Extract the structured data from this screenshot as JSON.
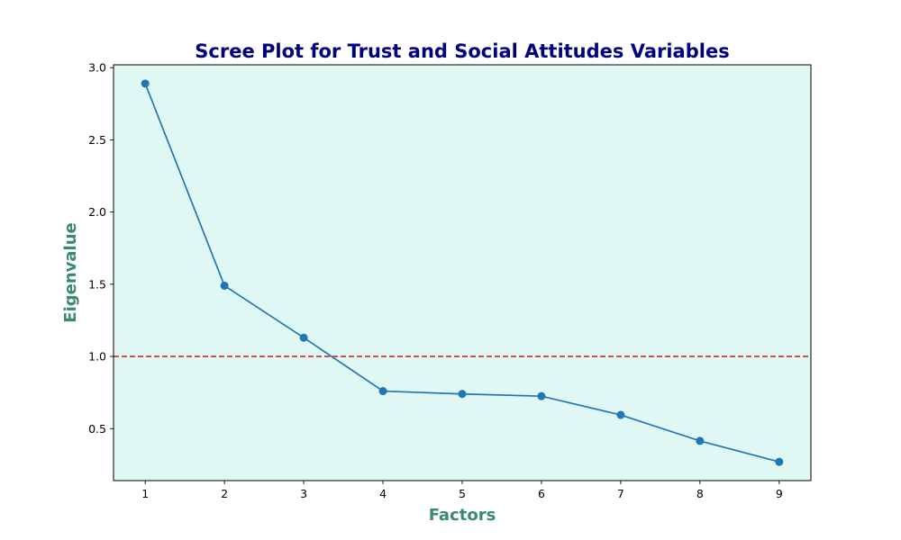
{
  "chart_data": {
    "type": "line",
    "title": "Scree Plot for Trust and Social Attitudes Variables",
    "xlabel": "Factors",
    "ylabel": "Eigenvalue",
    "x": [
      1,
      2,
      3,
      4,
      5,
      6,
      7,
      8,
      9
    ],
    "series": [
      {
        "values": [
          2.89,
          1.49,
          1.13,
          0.76,
          0.74,
          0.725,
          0.595,
          0.415,
          0.27
        ],
        "color": "#1f77b4",
        "marker": "circle"
      }
    ],
    "reference_line": {
      "y": 1.0,
      "color": "#d62728",
      "style": "dashed"
    },
    "xlim": [
      0.6,
      9.4
    ],
    "ylim": [
      0.14,
      3.02
    ],
    "xticks": [
      1,
      2,
      3,
      4,
      5,
      6,
      7,
      8,
      9
    ],
    "yticks": [
      0.5,
      1.0,
      1.5,
      2.0,
      2.5,
      3.0
    ],
    "ytick_labels": [
      "0.5",
      "1.0",
      "1.5",
      "2.0",
      "2.5",
      "3.0"
    ],
    "grid": false,
    "background_color": "#e0f8f4",
    "title_color": "#000080",
    "axis_label_color": "#3a8a6e"
  }
}
